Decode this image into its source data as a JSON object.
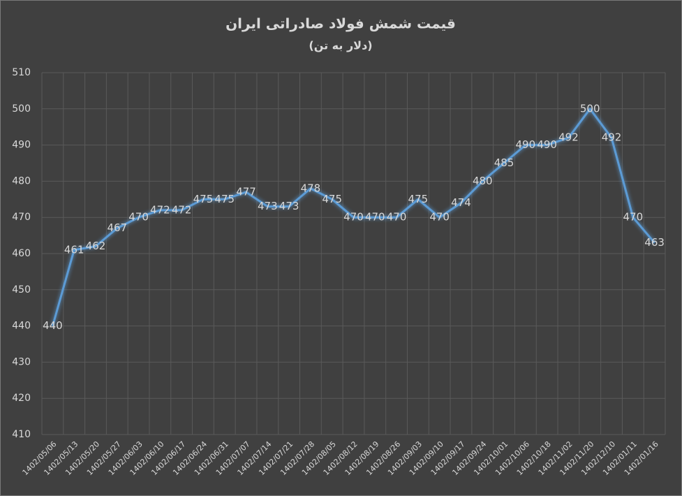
{
  "chart_data": {
    "type": "line",
    "title": "قیمت شمش فولاد صادراتی ایران",
    "subtitle": "(دلار به تن)",
    "categories": [
      "1402/05/06",
      "1402/05/13",
      "1402/05/20",
      "1402/05/27",
      "1402/06/03",
      "1402/06/10",
      "1402/06/17",
      "1402/06/24",
      "1402/06/31",
      "1402/07/07",
      "1402/07/14",
      "1402/07/21",
      "1402/07/28",
      "1402/08/05",
      "1402/08/12",
      "1402/08/19",
      "1402/08/26",
      "1402/09/03",
      "1402/09/10",
      "1402/09/17",
      "1402/09/24",
      "1402/10/01",
      "1402/10/06",
      "1402/10/18",
      "1402/11/02",
      "1402/11/20",
      "1402/12/10",
      "1402/01/11",
      "1402/01/16"
    ],
    "values": [
      440,
      461,
      462,
      467,
      470,
      472,
      472,
      475,
      475,
      477,
      473,
      473,
      478,
      475,
      470,
      470,
      470,
      475,
      470,
      474,
      480,
      485,
      490,
      490,
      492,
      500,
      492,
      470,
      463
    ],
    "color": "#5b9bd5",
    "ylim": [
      410,
      510
    ],
    "yticks": [
      410,
      420,
      430,
      440,
      450,
      460,
      470,
      480,
      490,
      500,
      510
    ],
    "grid": true
  }
}
